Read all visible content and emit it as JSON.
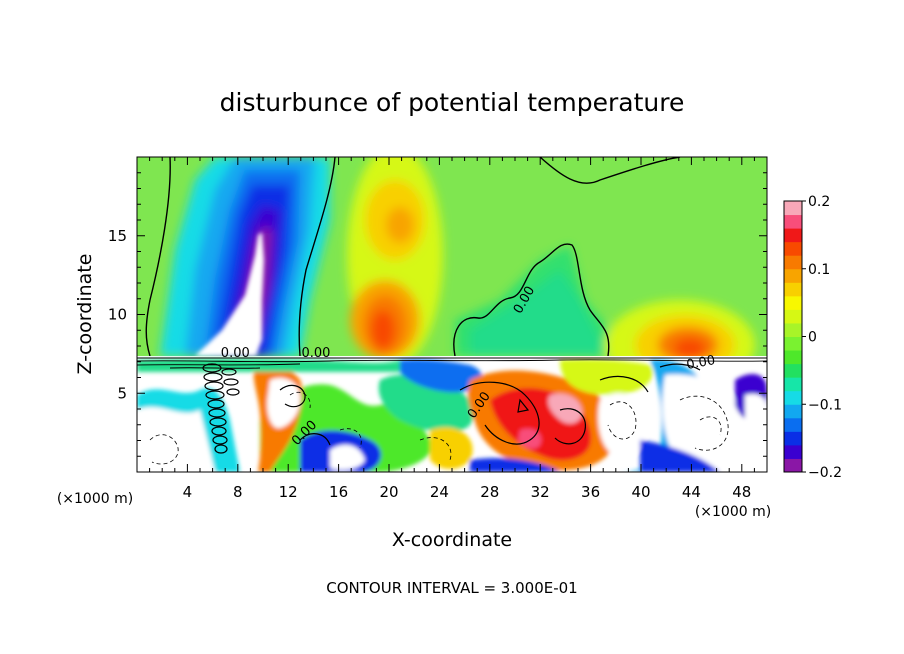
{
  "chart_data": {
    "type": "heatmap",
    "title": "disturbunce of potential temperature",
    "xlabel": "X-coordinate",
    "ylabel": "Z-coordinate",
    "x_unit_note": "(×1000 m)",
    "x_ticks": [
      4,
      8,
      12,
      16,
      20,
      24,
      28,
      32,
      36,
      40,
      44,
      48
    ],
    "y_ticks": [
      5,
      10,
      15
    ],
    "xlim": [
      0,
      50
    ],
    "ylim": [
      0,
      20
    ],
    "footer": "CONTOUR INTERVAL = 3.000E-01",
    "colorbar": {
      "range": [
        -0.2,
        0.2
      ],
      "tick_values": [
        0.2,
        0.1,
        0,
        -0.1,
        -0.2
      ],
      "tick_labels": [
        "0.2",
        "0.1",
        "0",
        "−0.1",
        "−0.2"
      ],
      "colors": [
        "#8a17a6",
        "#3a00d0",
        "#0a2fe6",
        "#0a6ef0",
        "#12a8f0",
        "#16dbe6",
        "#16e6a8",
        "#22e060",
        "#4ee82a",
        "#7af230",
        "#a8f428",
        "#d6f814",
        "#f8f800",
        "#f8d000",
        "#f8a400",
        "#f87a00",
        "#f84a00",
        "#f01818",
        "#f84e7a",
        "#f8a8b8"
      ]
    },
    "contour_labels": [
      {
        "text": "0.00",
        "x": 31,
        "y": 10.8,
        "rotate": -60
      },
      {
        "text": "0.00",
        "x": 14.2,
        "y": 7.3,
        "rotate": 0
      },
      {
        "text": "0.00",
        "x": 7.8,
        "y": 7.3,
        "rotate": 0
      },
      {
        "text": "0.00",
        "x": 44.8,
        "y": 6.7,
        "rotate": -10
      },
      {
        "text": "0.00",
        "x": 27.4,
        "y": 4.1,
        "rotate": -55
      },
      {
        "text": "0.00",
        "x": 13.5,
        "y": 2.3,
        "rotate": -45
      }
    ]
  }
}
